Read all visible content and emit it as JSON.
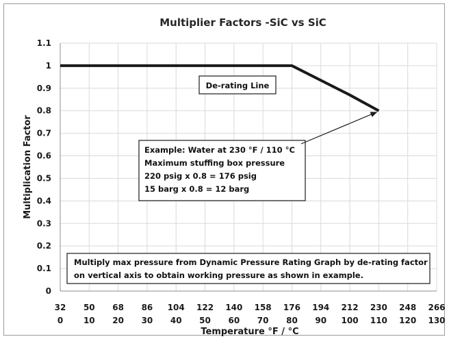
{
  "chart_data": {
    "type": "line",
    "title": "Multiplier Factors -SiC vs SiC",
    "xlabel": "Temperature °F / °C",
    "ylabel": "Multiplication Factor",
    "xlim": [
      32,
      266
    ],
    "ylim": [
      0,
      1.1
    ],
    "grid": true,
    "x_ticks_f": [
      "32",
      "50",
      "68",
      "86",
      "104",
      "122",
      "140",
      "158",
      "176",
      "194",
      "212",
      "230",
      "248",
      "266"
    ],
    "x_ticks_c": [
      "0",
      "10",
      "20",
      "30",
      "40",
      "50",
      "60",
      "70",
      "80",
      "90",
      "100",
      "110",
      "120",
      "130"
    ],
    "y_ticks": [
      "0",
      "0.1",
      "0.2",
      "0.3",
      "0.4",
      "0.5",
      "0.6",
      "0.7",
      "0.8",
      "0.9",
      "1",
      "1.1"
    ],
    "series": [
      {
        "x": [
          32,
          176,
          212,
          230
        ],
        "y": [
          1.0,
          1.0,
          0.87,
          0.8
        ]
      }
    ],
    "annotations": {
      "derating_label": "De-rating Line",
      "example_lines": [
        "Example: Water at 230 °F / 110 °C",
        "Maximum stuffing box pressure",
        "220 psig x 0.8 = 176 psig",
        "15 barg x 0.8 = 12 barg"
      ],
      "footer_lines": [
        "Multiply max pressure from Dynamic Pressure Rating Graph by de-rating factor",
        "on vertical axis to obtain working pressure as shown in example."
      ],
      "arrow_target": {
        "x": 230,
        "y": 0.8
      }
    },
    "colors": {
      "line": "#1a1a1a",
      "grid": "#d9d9d9"
    }
  }
}
